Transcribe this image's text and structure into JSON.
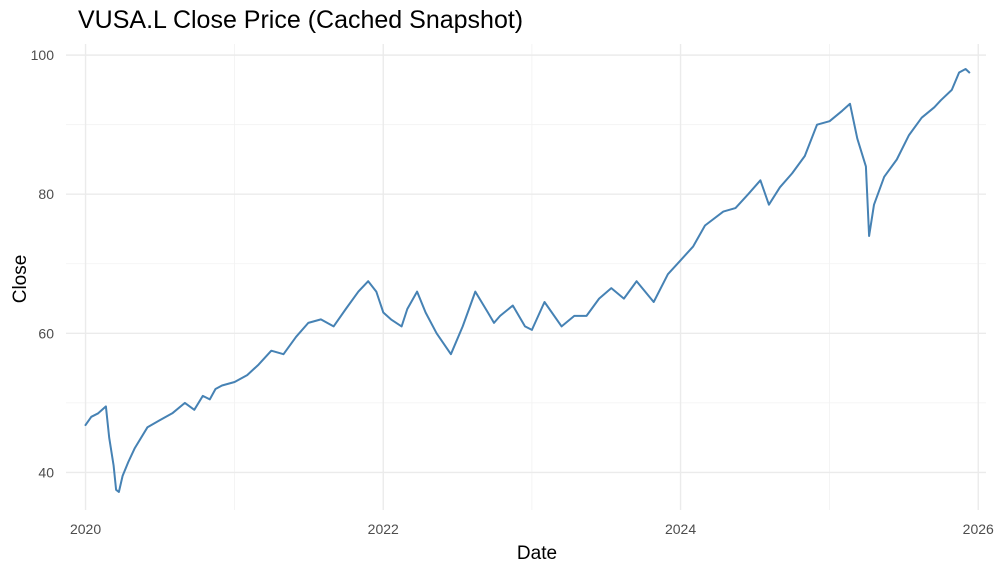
{
  "chart_data": {
    "type": "line",
    "title": "VUSA.L Close Price (Cached Snapshot)",
    "xlabel": "Date",
    "ylabel": "Close",
    "xlim": [
      "2019-11-14",
      "2026-01-20"
    ],
    "ylim": [
      34.6,
      101.6
    ],
    "x_ticks": [
      "2020",
      "2022",
      "2024",
      "2026"
    ],
    "y_ticks": [
      "40",
      "60",
      "80",
      "100"
    ],
    "grid": true,
    "legend": "none",
    "line_color": "#4682b4",
    "series": [
      {
        "x": [
          "2020-01-01",
          "2020-01-15",
          "2020-02-01",
          "2020-02-20",
          "2020-02-28",
          "2020-03-10",
          "2020-03-16",
          "2020-03-23",
          "2020-04-01",
          "2020-04-15",
          "2020-05-01",
          "2020-06-01",
          "2020-07-01",
          "2020-08-01",
          "2020-09-01",
          "2020-09-24",
          "2020-10-15",
          "2020-11-01",
          "2020-11-15",
          "2020-12-01",
          "2021-01-01",
          "2021-02-01",
          "2021-03-01",
          "2021-04-01",
          "2021-05-01",
          "2021-06-01",
          "2021-07-01",
          "2021-08-01",
          "2021-09-01",
          "2021-10-01",
          "2021-11-01",
          "2021-11-25",
          "2021-12-15",
          "2022-01-01",
          "2022-01-20",
          "2022-02-15",
          "2022-03-01",
          "2022-03-25",
          "2022-04-15",
          "2022-05-12",
          "2022-06-16",
          "2022-07-15",
          "2022-08-15",
          "2022-09-15",
          "2022-09-30",
          "2022-10-15",
          "2022-11-15",
          "2022-12-15",
          "2023-01-01",
          "2023-02-01",
          "2023-03-15",
          "2023-04-15",
          "2023-05-15",
          "2023-06-15",
          "2023-07-15",
          "2023-08-15",
          "2023-09-15",
          "2023-10-27",
          "2023-12-01",
          "2024-01-01",
          "2024-02-01",
          "2024-03-01",
          "2024-04-15",
          "2024-05-15",
          "2024-06-15",
          "2024-07-15",
          "2024-08-05",
          "2024-09-01",
          "2024-10-01",
          "2024-11-01",
          "2024-12-01",
          "2025-01-01",
          "2025-02-01",
          "2025-02-20",
          "2025-03-10",
          "2025-03-31",
          "2025-04-08",
          "2025-04-20",
          "2025-05-15",
          "2025-06-15",
          "2025-07-15",
          "2025-08-15",
          "2025-09-15",
          "2025-10-01",
          "2025-10-28",
          "2025-11-15",
          "2025-12-01",
          "2025-12-10"
        ],
        "y": [
          46.8,
          48.0,
          48.5,
          49.5,
          45.0,
          41.0,
          37.5,
          37.2,
          39.5,
          41.5,
          43.5,
          46.5,
          47.5,
          48.5,
          50.0,
          49.0,
          51.0,
          50.5,
          52.0,
          52.5,
          53.0,
          54.0,
          55.5,
          57.5,
          57.0,
          59.5,
          61.5,
          62.0,
          61.0,
          63.5,
          66.0,
          67.5,
          66.0,
          63.0,
          62.0,
          61.0,
          63.5,
          66.0,
          63.0,
          60.0,
          57.0,
          61.0,
          66.0,
          63.0,
          61.5,
          62.5,
          64.0,
          61.0,
          60.5,
          64.5,
          61.0,
          62.5,
          62.5,
          65.0,
          66.5,
          65.0,
          67.5,
          64.5,
          68.5,
          70.5,
          72.5,
          75.5,
          77.5,
          78.0,
          80.0,
          82.0,
          78.5,
          81.0,
          83.0,
          85.5,
          90.0,
          90.5,
          92.0,
          93.0,
          88.0,
          84.0,
          74.0,
          78.5,
          82.5,
          85.0,
          88.5,
          91.0,
          92.5,
          93.5,
          95.0,
          97.5,
          98.0,
          97.5
        ]
      }
    ]
  }
}
